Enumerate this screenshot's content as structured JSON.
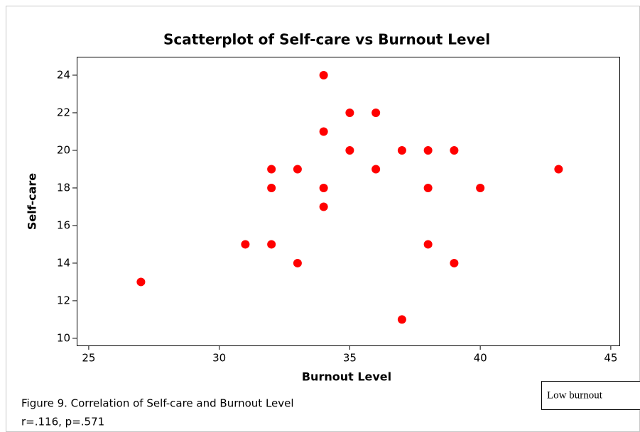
{
  "chart_data": {
    "type": "scatter",
    "title": "Scatterplot of Self-care vs Burnout Level",
    "x_label": "Burnout Level",
    "y_label": "Self-care",
    "x": [
      27,
      31,
      32,
      32,
      32,
      33,
      33,
      34,
      34,
      34,
      34,
      35,
      35,
      36,
      36,
      37,
      37,
      38,
      38,
      38,
      39,
      39,
      40,
      43
    ],
    "values": [
      13,
      15,
      19,
      18,
      15,
      19,
      14,
      24,
      21,
      18,
      17,
      22,
      20,
      22,
      19,
      20,
      11,
      20,
      18,
      15,
      20,
      14,
      18,
      19
    ],
    "color": "#ff0000",
    "xlim": [
      24.54,
      45.33
    ],
    "xticks": [
      25,
      30,
      35,
      40,
      45
    ],
    "ylim": [
      9.62,
      24.98
    ],
    "yticks": [
      10,
      12,
      14,
      16,
      18,
      20,
      22,
      24
    ],
    "grid": false,
    "notes": [
      "Figure 9. Correlation of Self-care and Burnout Level",
      "r=.116, p=.571"
    ],
    "annotation": "Low burnout"
  }
}
